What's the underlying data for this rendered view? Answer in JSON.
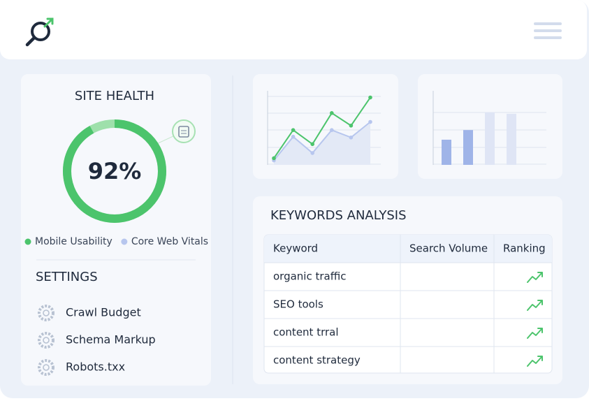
{
  "site_health": {
    "title": "SITE HEALTH",
    "value": 92,
    "value_label": "92%",
    "legend": [
      {
        "name": "Mobile Usability",
        "color": "#4cc46c"
      },
      {
        "name": "Core Web Vitals",
        "color": "#b7c6ee"
      }
    ]
  },
  "settings": {
    "title": "SETTINGS",
    "items": [
      "Crawl Budget",
      "Schema Markup",
      "Robots.txx"
    ]
  },
  "line_chart": {
    "type": "line",
    "categories": [
      null,
      null,
      null,
      null,
      null,
      null
    ],
    "ylim": [
      0,
      10
    ],
    "series": [
      {
        "color": "#4cc46c",
        "values": [
          0.9,
          4.7,
          2.8,
          7.0,
          5.3,
          9.1
        ]
      },
      {
        "color": "#b7c6ee",
        "values": [
          0.6,
          3.8,
          1.6,
          4.7,
          3.7,
          5.8
        ]
      }
    ]
  },
  "bar_chart": {
    "type": "bar",
    "categories": [
      null,
      null,
      null,
      null
    ],
    "ylim": [
      0,
      10
    ],
    "values": [
      3.4,
      4.7,
      7.1,
      6.9
    ],
    "colors": [
      "#9fb4e8",
      "#9fb4e8",
      "#dfe5f5",
      "#dfe5f5"
    ]
  },
  "keywords": {
    "title": "KEYWORDS ANALYSIS",
    "columns": [
      "Keyword",
      "Search Volume",
      "Ranking"
    ],
    "rows": [
      "organic traffic",
      "SEO tools",
      "content trral",
      "content strategy"
    ]
  }
}
